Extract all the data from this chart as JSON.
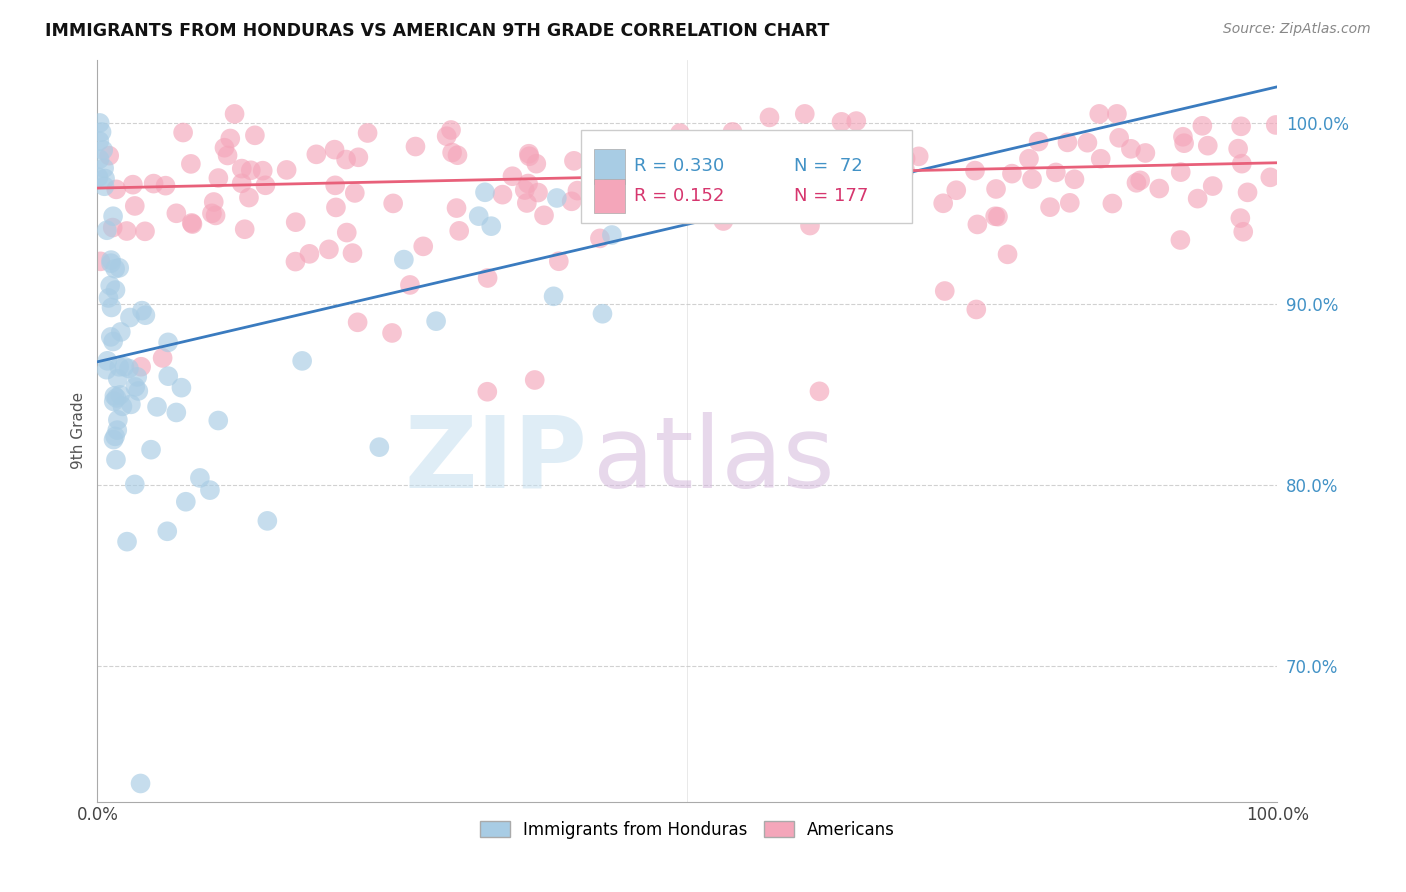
{
  "title": "IMMIGRANTS FROM HONDURAS VS AMERICAN 9TH GRADE CORRELATION CHART",
  "source": "Source: ZipAtlas.com",
  "ylabel": "9th Grade",
  "r_blue": 0.33,
  "n_blue": 72,
  "r_pink": 0.152,
  "n_pink": 177,
  "legend_label_blue": "Immigrants from Honduras",
  "legend_label_pink": "Americans",
  "blue_color": "#a8cce4",
  "pink_color": "#f4a6ba",
  "blue_line_color": "#3a7bbf",
  "pink_line_color": "#e8607a",
  "text_color_blue": "#4292c6",
  "text_color_pink": "#d6366e",
  "watermark_color_zip": "#b8d8ee",
  "watermark_color_atlas": "#c8a8d0",
  "background_color": "#ffffff",
  "grid_color": "#cccccc",
  "xlim": [
    0.0,
    1.0
  ],
  "ylim": [
    0.625,
    1.035
  ],
  "blue_trend_x0": 0.0,
  "blue_trend_y0": 0.868,
  "blue_trend_x1": 1.0,
  "blue_trend_y1": 1.02,
  "pink_trend_x0": 0.0,
  "pink_trend_y0": 0.964,
  "pink_trend_x1": 1.0,
  "pink_trend_y1": 0.978
}
